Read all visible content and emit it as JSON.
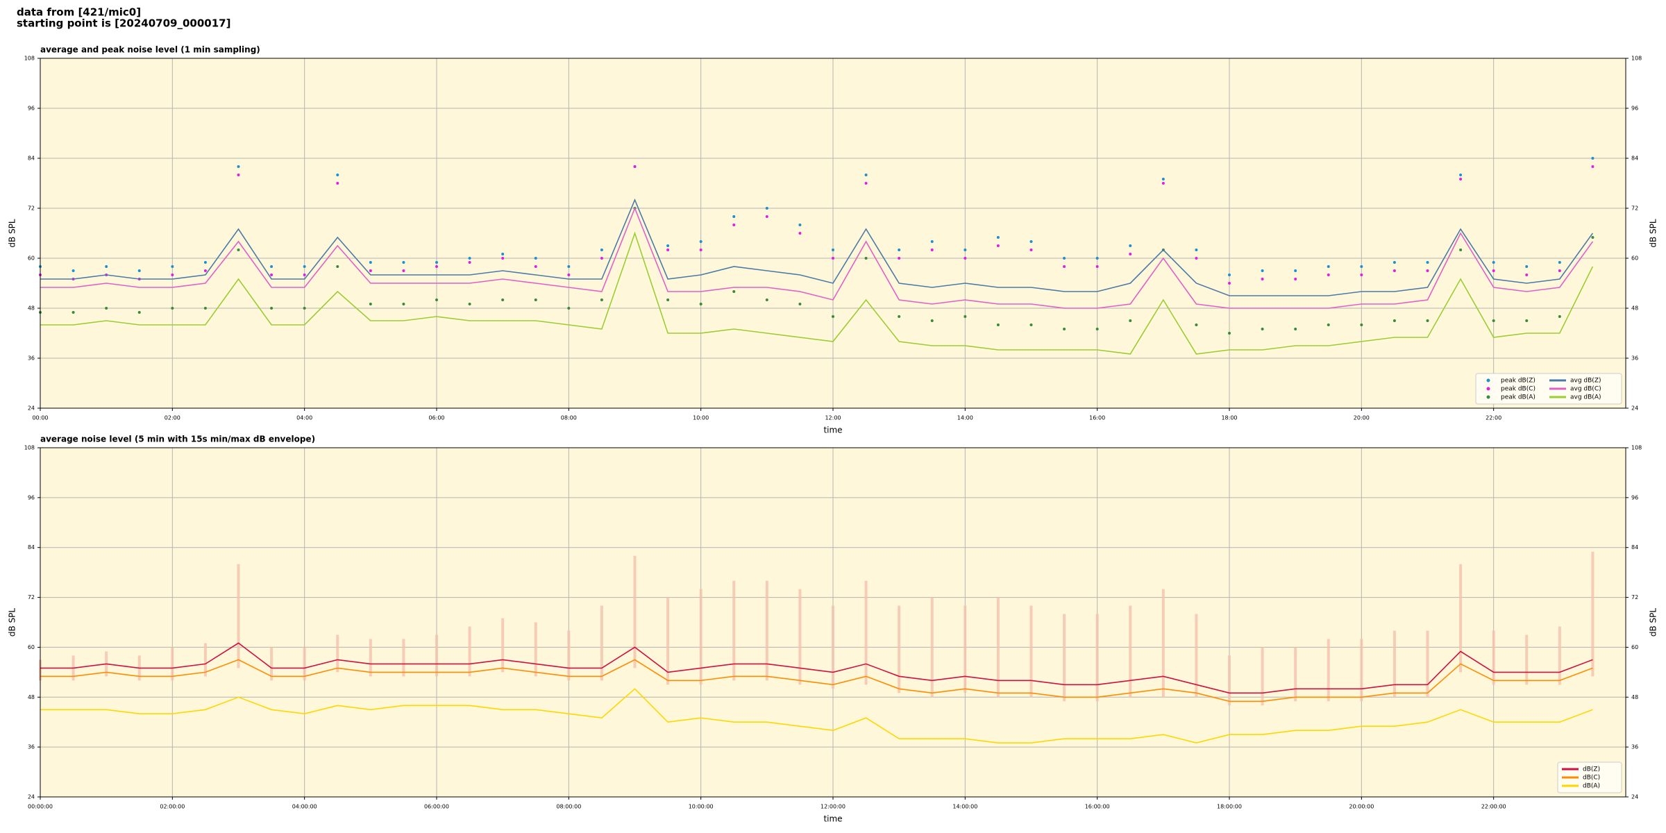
{
  "header": {
    "source": "data from [421/mic0]",
    "start": "starting point is [20240709_000017]"
  },
  "chart_data": [
    {
      "type": "line",
      "title": "average and peak noise level (1 min sampling)",
      "xlabel": "time",
      "ylabel": "dB SPL",
      "xlim": [
        0,
        24
      ],
      "ylim": [
        24,
        108
      ],
      "yticks": [
        24,
        36,
        48,
        60,
        72,
        84,
        96,
        108
      ],
      "xticks": [
        {
          "value": 0,
          "label": "00:00"
        },
        {
          "value": 2,
          "label": "02:00"
        },
        {
          "value": 4,
          "label": "04:00"
        },
        {
          "value": 6,
          "label": "06:00"
        },
        {
          "value": 8,
          "label": "08:00"
        },
        {
          "value": 10,
          "label": "10:00"
        },
        {
          "value": 12,
          "label": "12:00"
        },
        {
          "value": 14,
          "label": "14:00"
        },
        {
          "value": 16,
          "label": "16:00"
        },
        {
          "value": 18,
          "label": "18:00"
        },
        {
          "value": 20,
          "label": "20:00"
        },
        {
          "value": 22,
          "label": "22:00"
        }
      ],
      "grid": true,
      "legend": "lower right",
      "legend_columns": 2,
      "x": [
        0,
        0.5,
        1,
        1.5,
        2,
        2.5,
        3,
        3.5,
        4,
        4.5,
        5,
        5.5,
        6,
        6.5,
        7,
        7.5,
        8,
        8.5,
        9,
        9.5,
        10,
        10.5,
        11,
        11.5,
        12,
        12.5,
        13,
        13.5,
        14,
        14.5,
        15,
        15.5,
        16,
        16.5,
        17,
        17.5,
        18,
        18.5,
        19,
        19.5,
        20,
        20.5,
        21,
        21.5,
        22,
        22.5,
        23,
        23.5
      ],
      "series": [
        {
          "name": "peak dB(Z)",
          "color": "#1f8fd0",
          "marker": "dot",
          "values": [
            58,
            57,
            58,
            57,
            58,
            59,
            82,
            58,
            58,
            80,
            59,
            59,
            59,
            60,
            61,
            60,
            58,
            62,
            82,
            63,
            64,
            70,
            72,
            68,
            62,
            80,
            62,
            64,
            62,
            65,
            64,
            60,
            60,
            63,
            79,
            62,
            56,
            57,
            57,
            58,
            58,
            59,
            59,
            80,
            59,
            58,
            59,
            84
          ]
        },
        {
          "name": "peak dB(C)",
          "color": "#e020e0",
          "marker": "dot",
          "values": [
            56,
            55,
            56,
            55,
            56,
            57,
            80,
            56,
            56,
            78,
            57,
            57,
            58,
            59,
            60,
            58,
            56,
            60,
            82,
            62,
            62,
            68,
            70,
            66,
            60,
            78,
            60,
            62,
            60,
            63,
            62,
            58,
            58,
            61,
            78,
            60,
            54,
            55,
            55,
            56,
            56,
            57,
            57,
            79,
            57,
            56,
            57,
            82
          ]
        },
        {
          "name": "peak dB(A)",
          "color": "#3a8a3a",
          "marker": "dot",
          "values": [
            47,
            47,
            48,
            47,
            48,
            48,
            62,
            48,
            48,
            58,
            49,
            49,
            50,
            49,
            50,
            50,
            48,
            50,
            72,
            50,
            49,
            52,
            50,
            49,
            46,
            60,
            46,
            45,
            46,
            44,
            44,
            43,
            43,
            45,
            62,
            44,
            42,
            43,
            43,
            44,
            44,
            45,
            45,
            62,
            45,
            45,
            46,
            65
          ]
        },
        {
          "name": "avg dB(Z)",
          "color": "#4a7aa8",
          "values": [
            55,
            55,
            56,
            55,
            55,
            56,
            67,
            55,
            55,
            65,
            56,
            56,
            56,
            56,
            57,
            56,
            55,
            55,
            74,
            55,
            56,
            58,
            57,
            56,
            54,
            67,
            54,
            53,
            54,
            53,
            53,
            52,
            52,
            54,
            62,
            54,
            51,
            51,
            51,
            51,
            52,
            52,
            53,
            67,
            55,
            54,
            55,
            66
          ]
        },
        {
          "name": "avg dB(C)",
          "color": "#e060c8",
          "values": [
            53,
            53,
            54,
            53,
            53,
            54,
            64,
            53,
            53,
            63,
            54,
            54,
            54,
            54,
            55,
            54,
            53,
            52,
            72,
            52,
            52,
            53,
            53,
            52,
            50,
            64,
            50,
            49,
            50,
            49,
            49,
            48,
            48,
            49,
            60,
            49,
            48,
            48,
            48,
            48,
            49,
            49,
            50,
            66,
            53,
            52,
            53,
            64
          ]
        },
        {
          "name": "avg dB(A)",
          "color": "#9acd32",
          "values": [
            44,
            44,
            45,
            44,
            44,
            44,
            55,
            44,
            44,
            52,
            45,
            45,
            46,
            45,
            45,
            45,
            44,
            43,
            66,
            42,
            42,
            43,
            42,
            41,
            40,
            50,
            40,
            39,
            39,
            38,
            38,
            38,
            38,
            37,
            50,
            37,
            38,
            38,
            39,
            39,
            40,
            41,
            41,
            55,
            41,
            42,
            42,
            58
          ]
        }
      ]
    },
    {
      "type": "line",
      "title": "average noise level (5 min with 15s min/max dB envelope)",
      "xlabel": "time",
      "ylabel": "dB SPL",
      "xlim": [
        0,
        24
      ],
      "ylim": [
        24,
        108
      ],
      "yticks": [
        24,
        36,
        48,
        60,
        72,
        84,
        96,
        108
      ],
      "xticks": [
        {
          "value": 0,
          "label": "00:00:00"
        },
        {
          "value": 2,
          "label": "02:00:00"
        },
        {
          "value": 4,
          "label": "04:00:00"
        },
        {
          "value": 6,
          "label": "06:00:00"
        },
        {
          "value": 8,
          "label": "08:00:00"
        },
        {
          "value": 10,
          "label": "10:00:00"
        },
        {
          "value": 12,
          "label": "12:00:00"
        },
        {
          "value": 14,
          "label": "14:00:00"
        },
        {
          "value": 16,
          "label": "16:00:00"
        },
        {
          "value": 18,
          "label": "18:00:00"
        },
        {
          "value": 20,
          "label": "20:00:00"
        },
        {
          "value": 22,
          "label": "22:00:00"
        }
      ],
      "grid": true,
      "legend": "lower right",
      "legend_columns": 1,
      "x": [
        0,
        0.5,
        1,
        1.5,
        2,
        2.5,
        3,
        3.5,
        4,
        4.5,
        5,
        5.5,
        6,
        6.5,
        7,
        7.5,
        8,
        8.5,
        9,
        9.5,
        10,
        10.5,
        11,
        11.5,
        12,
        12.5,
        13,
        13.5,
        14,
        14.5,
        15,
        15.5,
        16,
        16.5,
        17,
        17.5,
        18,
        18.5,
        19,
        19.5,
        20,
        20.5,
        21,
        21.5,
        22,
        22.5,
        23,
        23.5
      ],
      "envelope": {
        "color": "#f5c2ae",
        "lower": [
          52,
          52,
          53,
          52,
          52,
          53,
          55,
          52,
          52,
          54,
          53,
          53,
          53,
          53,
          54,
          53,
          52,
          52,
          55,
          51,
          51,
          52,
          52,
          51,
          50,
          51,
          49,
          48,
          49,
          48,
          48,
          47,
          47,
          48,
          48,
          48,
          46,
          46,
          47,
          47,
          47,
          48,
          48,
          54,
          51,
          51,
          51,
          53
        ],
        "upper": [
          57,
          58,
          59,
          58,
          60,
          61,
          80,
          60,
          60,
          63,
          62,
          62,
          63,
          65,
          67,
          66,
          64,
          70,
          82,
          72,
          74,
          76,
          76,
          74,
          70,
          76,
          70,
          72,
          70,
          72,
          70,
          68,
          68,
          70,
          74,
          68,
          58,
          60,
          60,
          62,
          62,
          64,
          64,
          80,
          64,
          63,
          65,
          83
        ]
      },
      "series": [
        {
          "name": "dB(Z)",
          "color": "#d01040",
          "values": [
            55,
            55,
            56,
            55,
            55,
            56,
            61,
            55,
            55,
            57,
            56,
            56,
            56,
            56,
            57,
            56,
            55,
            55,
            60,
            54,
            55,
            56,
            56,
            55,
            54,
            56,
            53,
            52,
            53,
            52,
            52,
            51,
            51,
            52,
            53,
            51,
            49,
            49,
            50,
            50,
            50,
            51,
            51,
            59,
            54,
            54,
            54,
            57
          ]
        },
        {
          "name": "dB(C)",
          "color": "#ff8c00",
          "values": [
            53,
            53,
            54,
            53,
            53,
            54,
            57,
            53,
            53,
            55,
            54,
            54,
            54,
            54,
            55,
            54,
            53,
            53,
            57,
            52,
            52,
            53,
            53,
            52,
            51,
            53,
            50,
            49,
            50,
            49,
            49,
            48,
            48,
            49,
            50,
            49,
            47,
            47,
            48,
            48,
            48,
            49,
            49,
            56,
            52,
            52,
            52,
            55
          ]
        },
        {
          "name": "dB(A)",
          "color": "#ffd700",
          "values": [
            45,
            45,
            45,
            44,
            44,
            45,
            48,
            45,
            44,
            46,
            45,
            46,
            46,
            46,
            45,
            45,
            44,
            43,
            50,
            42,
            43,
            42,
            42,
            41,
            40,
            43,
            38,
            38,
            38,
            37,
            37,
            38,
            38,
            38,
            39,
            37,
            39,
            39,
            40,
            40,
            41,
            41,
            42,
            45,
            42,
            42,
            42,
            45
          ]
        }
      ]
    }
  ]
}
